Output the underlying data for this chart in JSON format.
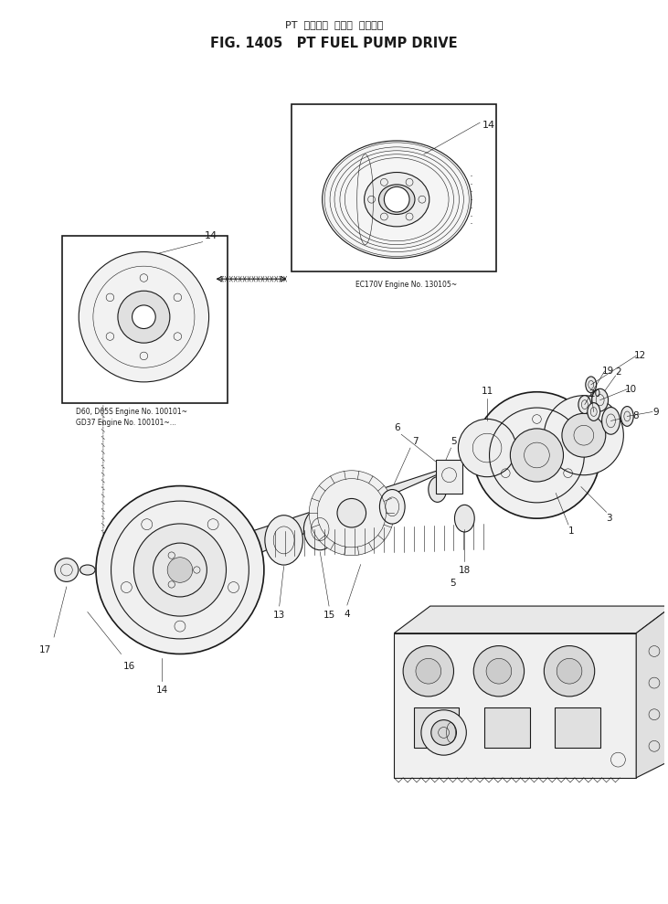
{
  "title_japanese": "PT フェエル ポンプ ドライブ",
  "title_english": "FIG. 1405  PT FUEL PUMP DRIVE",
  "bg_color": "#ffffff",
  "line_color": "#1a1a1a",
  "fig_width": 7.31,
  "fig_height": 9.89,
  "dpi": 100,
  "annotation_top": "EC170V Engine No. 130105~",
  "annotation_bottom_line1": "D60, D65S Engine No. 100101~",
  "annotation_bottom_line2": "GD37 Engine No. 100101~..."
}
